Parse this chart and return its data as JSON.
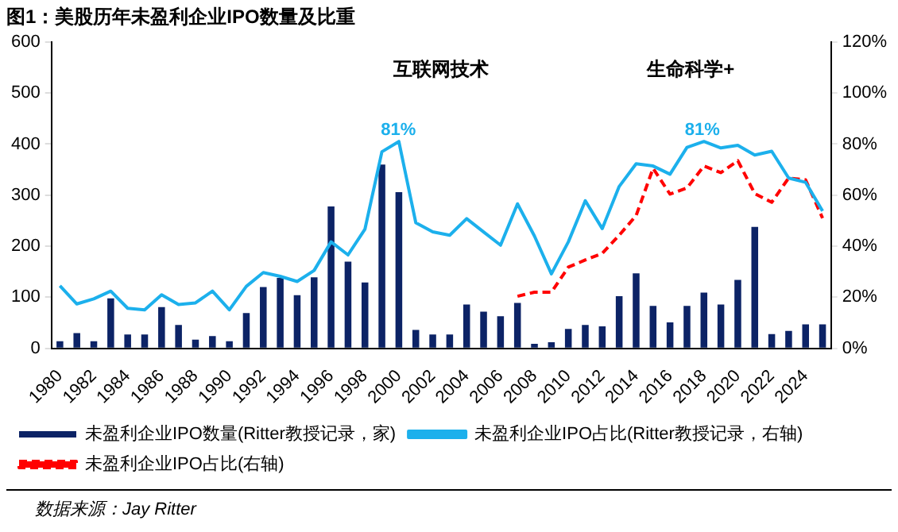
{
  "chart_data": {
    "type": "bar",
    "title": "图1：美股历年未盈利企业IPO数量及比重",
    "categories": [
      "1980",
      null,
      "1982",
      null,
      "1984",
      null,
      "1986",
      null,
      "1988",
      null,
      "1990",
      null,
      "1992",
      null,
      "1994",
      null,
      "1996",
      null,
      "1998",
      null,
      "2000",
      null,
      "2002",
      null,
      "2004",
      null,
      "2006",
      null,
      "2008",
      null,
      "2010",
      null,
      "2012",
      null,
      "2014",
      null,
      "2016",
      null,
      "2018",
      null,
      "2020",
      null,
      "2022",
      null,
      "2024",
      null
    ],
    "series": [
      {
        "name": "未盈利企业IPO数量(Ritter教授记录，家)",
        "color": "#0c2366",
        "values": [
          14,
          30,
          14,
          98,
          27,
          27,
          81,
          46,
          17,
          24,
          14,
          69,
          120,
          138,
          104,
          139,
          278,
          170,
          129,
          360,
          306,
          36,
          27,
          27,
          86,
          72,
          63,
          89,
          9,
          12,
          38,
          46,
          43,
          102,
          147,
          83,
          51,
          83,
          109,
          86,
          134,
          238,
          28,
          34,
          47,
          47
        ]
      },
      {
        "name": "未盈利企业IPO占比(Ritter教授记录，右轴)",
        "type": "line",
        "axis": "y2",
        "color": "#1cb0ec",
        "values": [
          24.5,
          17.4,
          19.4,
          22.4,
          15.7,
          15.1,
          21,
          17.2,
          17.8,
          22.4,
          15.1,
          24.3,
          29.7,
          28.2,
          26.2,
          30.5,
          41.7,
          36.6,
          46.7,
          77,
          81,
          49.2,
          45.6,
          44.3,
          50.8,
          45.6,
          40.4,
          56.6,
          44,
          29.2,
          41.7,
          57.8,
          46.9,
          63.4,
          72.3,
          71.4,
          68.2,
          78.7,
          81,
          78.5,
          79.5,
          75.7,
          77.2,
          66.7,
          65,
          53.8
        ]
      },
      {
        "name": "未盈利企业IPO占比(右轴)",
        "type": "line",
        "axis": "y2",
        "line_style": "dashed",
        "color": "#ff0000",
        "values": [
          null,
          null,
          null,
          null,
          null,
          null,
          null,
          null,
          null,
          null,
          null,
          null,
          null,
          null,
          null,
          null,
          null,
          null,
          null,
          null,
          null,
          null,
          null,
          null,
          null,
          null,
          null,
          20.4,
          22,
          22,
          31.8,
          34.6,
          37.2,
          44.3,
          52,
          70.5,
          60.4,
          62.8,
          71.4,
          68.8,
          73.5,
          60.6,
          57.2,
          66.7,
          66,
          51
        ]
      }
    ],
    "ylim": [
      0,
      600
    ],
    "yticks": [
      0,
      100,
      200,
      300,
      400,
      500,
      600
    ],
    "y2lim": [
      0,
      120
    ],
    "y2ticks": [
      {
        "value": 0,
        "label": "0%"
      },
      {
        "value": 20,
        "label": "20%"
      },
      {
        "value": 40,
        "label": "40%"
      },
      {
        "value": 60,
        "label": "60%"
      },
      {
        "value": 80,
        "label": "80%"
      },
      {
        "value": 100,
        "label": "100%"
      },
      {
        "value": 120,
        "label": "120%"
      }
    ],
    "marker": "none",
    "legend": "bottom",
    "annotations": [
      "互联网技术",
      "生命科学+",
      "81%",
      "81%",
      "数据来源：Jay Ritter"
    ]
  }
}
